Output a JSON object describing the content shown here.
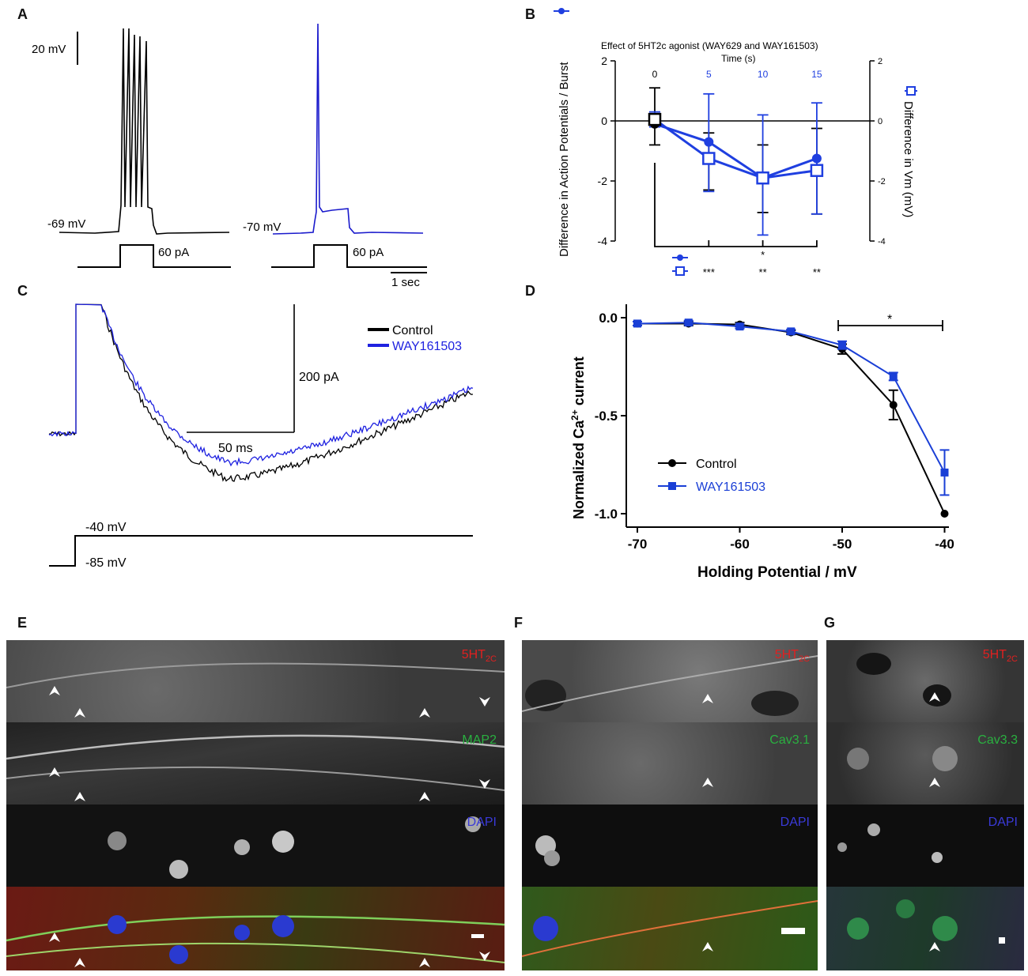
{
  "panels": {
    "a": "A",
    "b": "B",
    "c": "C",
    "d": "D",
    "e": "E",
    "f": "F",
    "g": "G"
  },
  "panel_a": {
    "scale_v": "20 mV",
    "scale_t": "1 sec",
    "trace1_rest": "-69 mV",
    "trace2_rest": "-70 mV",
    "step1": "60 pA",
    "step2": "60 pA",
    "colors": {
      "control": "#000000",
      "agonist": "#1a1acc"
    }
  },
  "panel_b": {
    "title": "Effect of 5HT2c agonist (WAY629 and  WAY161503)",
    "subtitle": "Time (s)",
    "ylabel_left": "Difference in Action Potentials / Burst",
    "ylabel_right": "Difference in Vm  (mV)",
    "sig_row1": [
      "",
      "",
      "*",
      ""
    ],
    "sig_row2": [
      "***",
      "**",
      "**"
    ]
  },
  "panel_c": {
    "legend": [
      "Control",
      "WAY161503"
    ],
    "scale_y": "200 pA",
    "scale_x": "50 ms",
    "v_hold": "-85 mV",
    "v_step": "-40 mV"
  },
  "panel_d": {
    "ylabel_main": "Normalized Ca",
    "ylabel_sup": "2+",
    "ylabel_tail": " current",
    "xlabel": "Holding Potential / mV",
    "sig": "*",
    "legend": [
      "Control",
      "WAY161503"
    ]
  },
  "panel_e": {
    "labels": [
      "5HT",
      "2C",
      "MAP2",
      "DAPI"
    ]
  },
  "panel_f": {
    "labels": [
      "5HT",
      "2C",
      "Cav3.1",
      "DAPI"
    ]
  },
  "panel_g": {
    "labels": [
      "5HT",
      "2C",
      "Cav3.3",
      "DAPI"
    ]
  },
  "chart_data": [
    {
      "type": "line",
      "panel": "B",
      "x": [
        0,
        5,
        10,
        15
      ],
      "xlabel": "Time (s)",
      "ylim_left": [
        -4,
        2
      ],
      "ylim_right": [
        -4,
        2
      ],
      "series": [
        {
          "name": "Difference in Action Potentials / Burst",
          "marker": "filled-circle",
          "values": [
            -0.1,
            -0.7,
            -1.9,
            -1.25
          ],
          "err_upper": [
            1.1,
            -0.4,
            -0.8,
            -0.25
          ],
          "err_lower": [
            -0.8,
            -2.3,
            -3.05,
            -3.1
          ]
        },
        {
          "name": "Difference in Vm  (mV)",
          "marker": "open-square",
          "values": [
            0.05,
            -1.25,
            -1.9,
            -1.65
          ],
          "err_upper": [
            0.3,
            0.9,
            0.2,
            0.6
          ],
          "err_lower": [
            -0.2,
            -2.35,
            -3.8,
            -3.1
          ]
        }
      ],
      "yticks": [
        -4,
        -2,
        0,
        2
      ]
    },
    {
      "type": "line",
      "panel": "D",
      "x": [
        -70,
        -65,
        -60,
        -55,
        -50,
        -45,
        -40
      ],
      "xlabel": "Holding Potential / mV",
      "ylim": [
        -1.1,
        0.02
      ],
      "xlim": [
        -71,
        -39
      ],
      "xticks": [
        -70,
        -60,
        -50,
        -40
      ],
      "yticks": [
        0.0,
        -0.5,
        -1.0
      ],
      "series": [
        {
          "name": "Control",
          "color": "#000000",
          "values": [
            -0.03,
            -0.03,
            -0.035,
            -0.075,
            -0.16,
            -0.445,
            -1.0
          ],
          "err": [
            0.01,
            0.01,
            0.01,
            0.01,
            0.025,
            0.075,
            0.0
          ]
        },
        {
          "name": "WAY161503",
          "color": "#1a3fd6",
          "values": [
            -0.03,
            -0.025,
            -0.045,
            -0.07,
            -0.14,
            -0.3,
            -0.79
          ],
          "err": [
            0.01,
            0.01,
            0.01,
            0.01,
            0.02,
            0.02,
            0.115
          ]
        }
      ]
    }
  ]
}
